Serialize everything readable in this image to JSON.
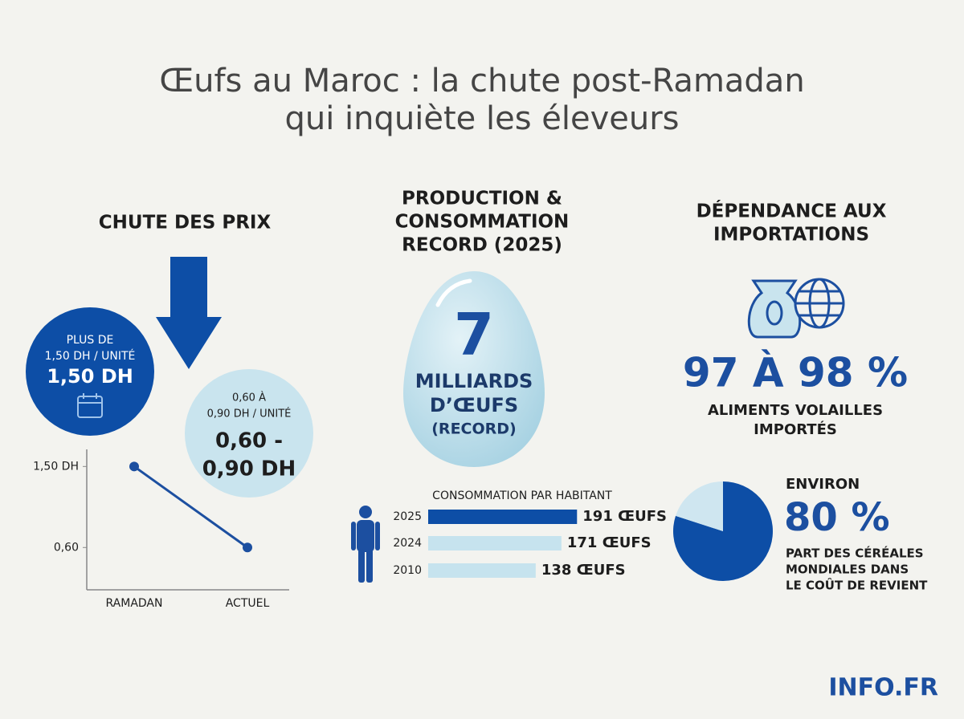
{
  "title_lines": [
    "Œufs au Maroc : la chute post-Ramadan",
    "qui inquiète les éleveurs"
  ],
  "price": {
    "heading": "CHUTE DES PRIX",
    "before": {
      "caption_lines": [
        "PLUS DE",
        "1,50 DH / UNITÉ"
      ],
      "value": "1,50 DH"
    },
    "after": {
      "caption_lines": [
        "0,60 À",
        "0,90 DH / UNITÉ"
      ],
      "value_lines": [
        "0,60 -",
        "0,90 DH"
      ]
    }
  },
  "production": {
    "heading_lines": [
      "PRODUCTION &",
      "CONSOMMATION",
      "RECORD (2025)"
    ],
    "number": "7",
    "text_lines": [
      "MILLIARDS",
      "D’ŒUFS"
    ],
    "note": "(RECORD)"
  },
  "imports": {
    "heading_lines": [
      "DÉPENDANCE AUX",
      "IMPORTATIONS"
    ],
    "figure": "97 À 98 %",
    "caption_lines": [
      "ALIMENTS VOLAILLES",
      "IMPORTÉS"
    ]
  },
  "brand": "INFO.FR",
  "chart_data": [
    {
      "type": "line",
      "categories": [
        "RAMADAN",
        "ACTUEL"
      ],
      "values": [
        1.5,
        0.6
      ],
      "color": "#1c4fa0",
      "ylim": [
        0.13,
        1.69
      ],
      "yticks": [
        {
          "value": 1.5,
          "label": "1,50 DH"
        },
        {
          "value": 0.6,
          "label": "0,60"
        }
      ]
    },
    {
      "type": "hbar",
      "title": "CONSOMMATION PAR HABITANT",
      "categories": [
        "2025",
        "2024",
        "2010"
      ],
      "values": [
        191,
        171,
        138
      ],
      "value_labels": [
        "191 ŒUFS",
        "171 ŒUFS",
        "138 ŒUFS"
      ],
      "colors": [
        "#0d4ea6",
        "#c6e3ee",
        "#c6e3ee"
      ],
      "xlim": [
        0,
        200
      ]
    },
    {
      "type": "pie",
      "label_above": "ENVIRON",
      "categories": [
        null,
        null
      ],
      "values": [
        80,
        20
      ],
      "value_labels": [
        "80 %",
        null
      ],
      "colors": [
        "#0d4ea6",
        "#cfe6f0"
      ],
      "caption_lines": [
        "PART DES CÉRÉALES",
        "MONDIALES DANS",
        "LE COÛT DE REVIENT"
      ]
    }
  ]
}
